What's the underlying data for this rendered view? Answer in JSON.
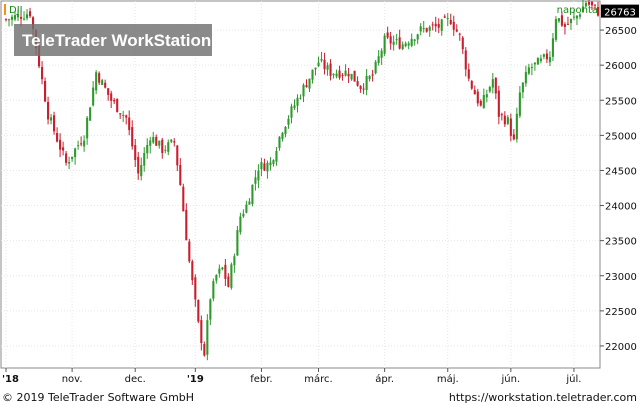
{
  "chart_data": {
    "type": "candlestick",
    "symbol": "DJI",
    "period_label": "naponta",
    "last_value_label": "26763",
    "watermark": "TeleTrader WorkStation",
    "y_ticks": [
      "26500",
      "26000",
      "25500",
      "25000",
      "24500",
      "24000",
      "23500",
      "23000",
      "22500",
      "22000"
    ],
    "y_tick_values": [
      26500,
      26000,
      25500,
      25000,
      24500,
      24000,
      23500,
      23000,
      22500,
      22000
    ],
    "ylim": [
      21700,
      26900
    ],
    "last_value": 26763,
    "x_tick_labels": [
      "'18",
      "nov.",
      "dec.",
      "'19",
      "febr.",
      "márc.",
      "ápr.",
      "máj.",
      "jún.",
      "júl."
    ],
    "x_tick_positions": [
      0,
      22,
      43,
      63,
      85,
      104,
      126,
      147,
      168,
      189
    ],
    "x_range": [
      0,
      197
    ],
    "grid": true,
    "colors": {
      "up": "#2e9a2e",
      "down": "#c81e2e",
      "last_badge_bg": "#000000",
      "last_badge_text": "#ffffff",
      "period": "#1a8a1a"
    },
    "close_path": [
      [
        0,
        26650
      ],
      [
        8,
        26750
      ],
      [
        14,
        25300
      ],
      [
        20,
        24600
      ],
      [
        26,
        25000
      ],
      [
        30,
        25900
      ],
      [
        35,
        25500
      ],
      [
        40,
        25250
      ],
      [
        44,
        24450
      ],
      [
        48,
        25000
      ],
      [
        52,
        24800
      ],
      [
        56,
        24900
      ],
      [
        58,
        24300
      ],
      [
        61,
        23200
      ],
      [
        64,
        22300
      ],
      [
        66,
        21900
      ],
      [
        68,
        22700
      ],
      [
        70,
        23000
      ],
      [
        72,
        23100
      ],
      [
        74,
        22850
      ],
      [
        78,
        23850
      ],
      [
        80,
        24000
      ],
      [
        84,
        24550
      ],
      [
        88,
        24600
      ],
      [
        92,
        25100
      ],
      [
        98,
        25600
      ],
      [
        104,
        26050
      ],
      [
        108,
        25900
      ],
      [
        114,
        25900
      ],
      [
        118,
        25700
      ],
      [
        122,
        25850
      ],
      [
        126,
        26350
      ],
      [
        132,
        26300
      ],
      [
        138,
        26500
      ],
      [
        144,
        26550
      ],
      [
        148,
        26650
      ],
      [
        151,
        26400
      ],
      [
        154,
        25800
      ],
      [
        158,
        25400
      ],
      [
        162,
        25800
      ],
      [
        164,
        25300
      ],
      [
        167,
        25200
      ],
      [
        169,
        24900
      ],
      [
        171,
        25600
      ],
      [
        174,
        25950
      ],
      [
        178,
        26050
      ],
      [
        181,
        26150
      ],
      [
        183,
        26700
      ],
      [
        186,
        26550
      ],
      [
        190,
        26700
      ],
      [
        193,
        26900
      ],
      [
        197,
        26763
      ]
    ]
  },
  "footer": {
    "copyright": "© 2019 TeleTrader Software GmbH",
    "url": "https://workstation.teletrader.com"
  }
}
